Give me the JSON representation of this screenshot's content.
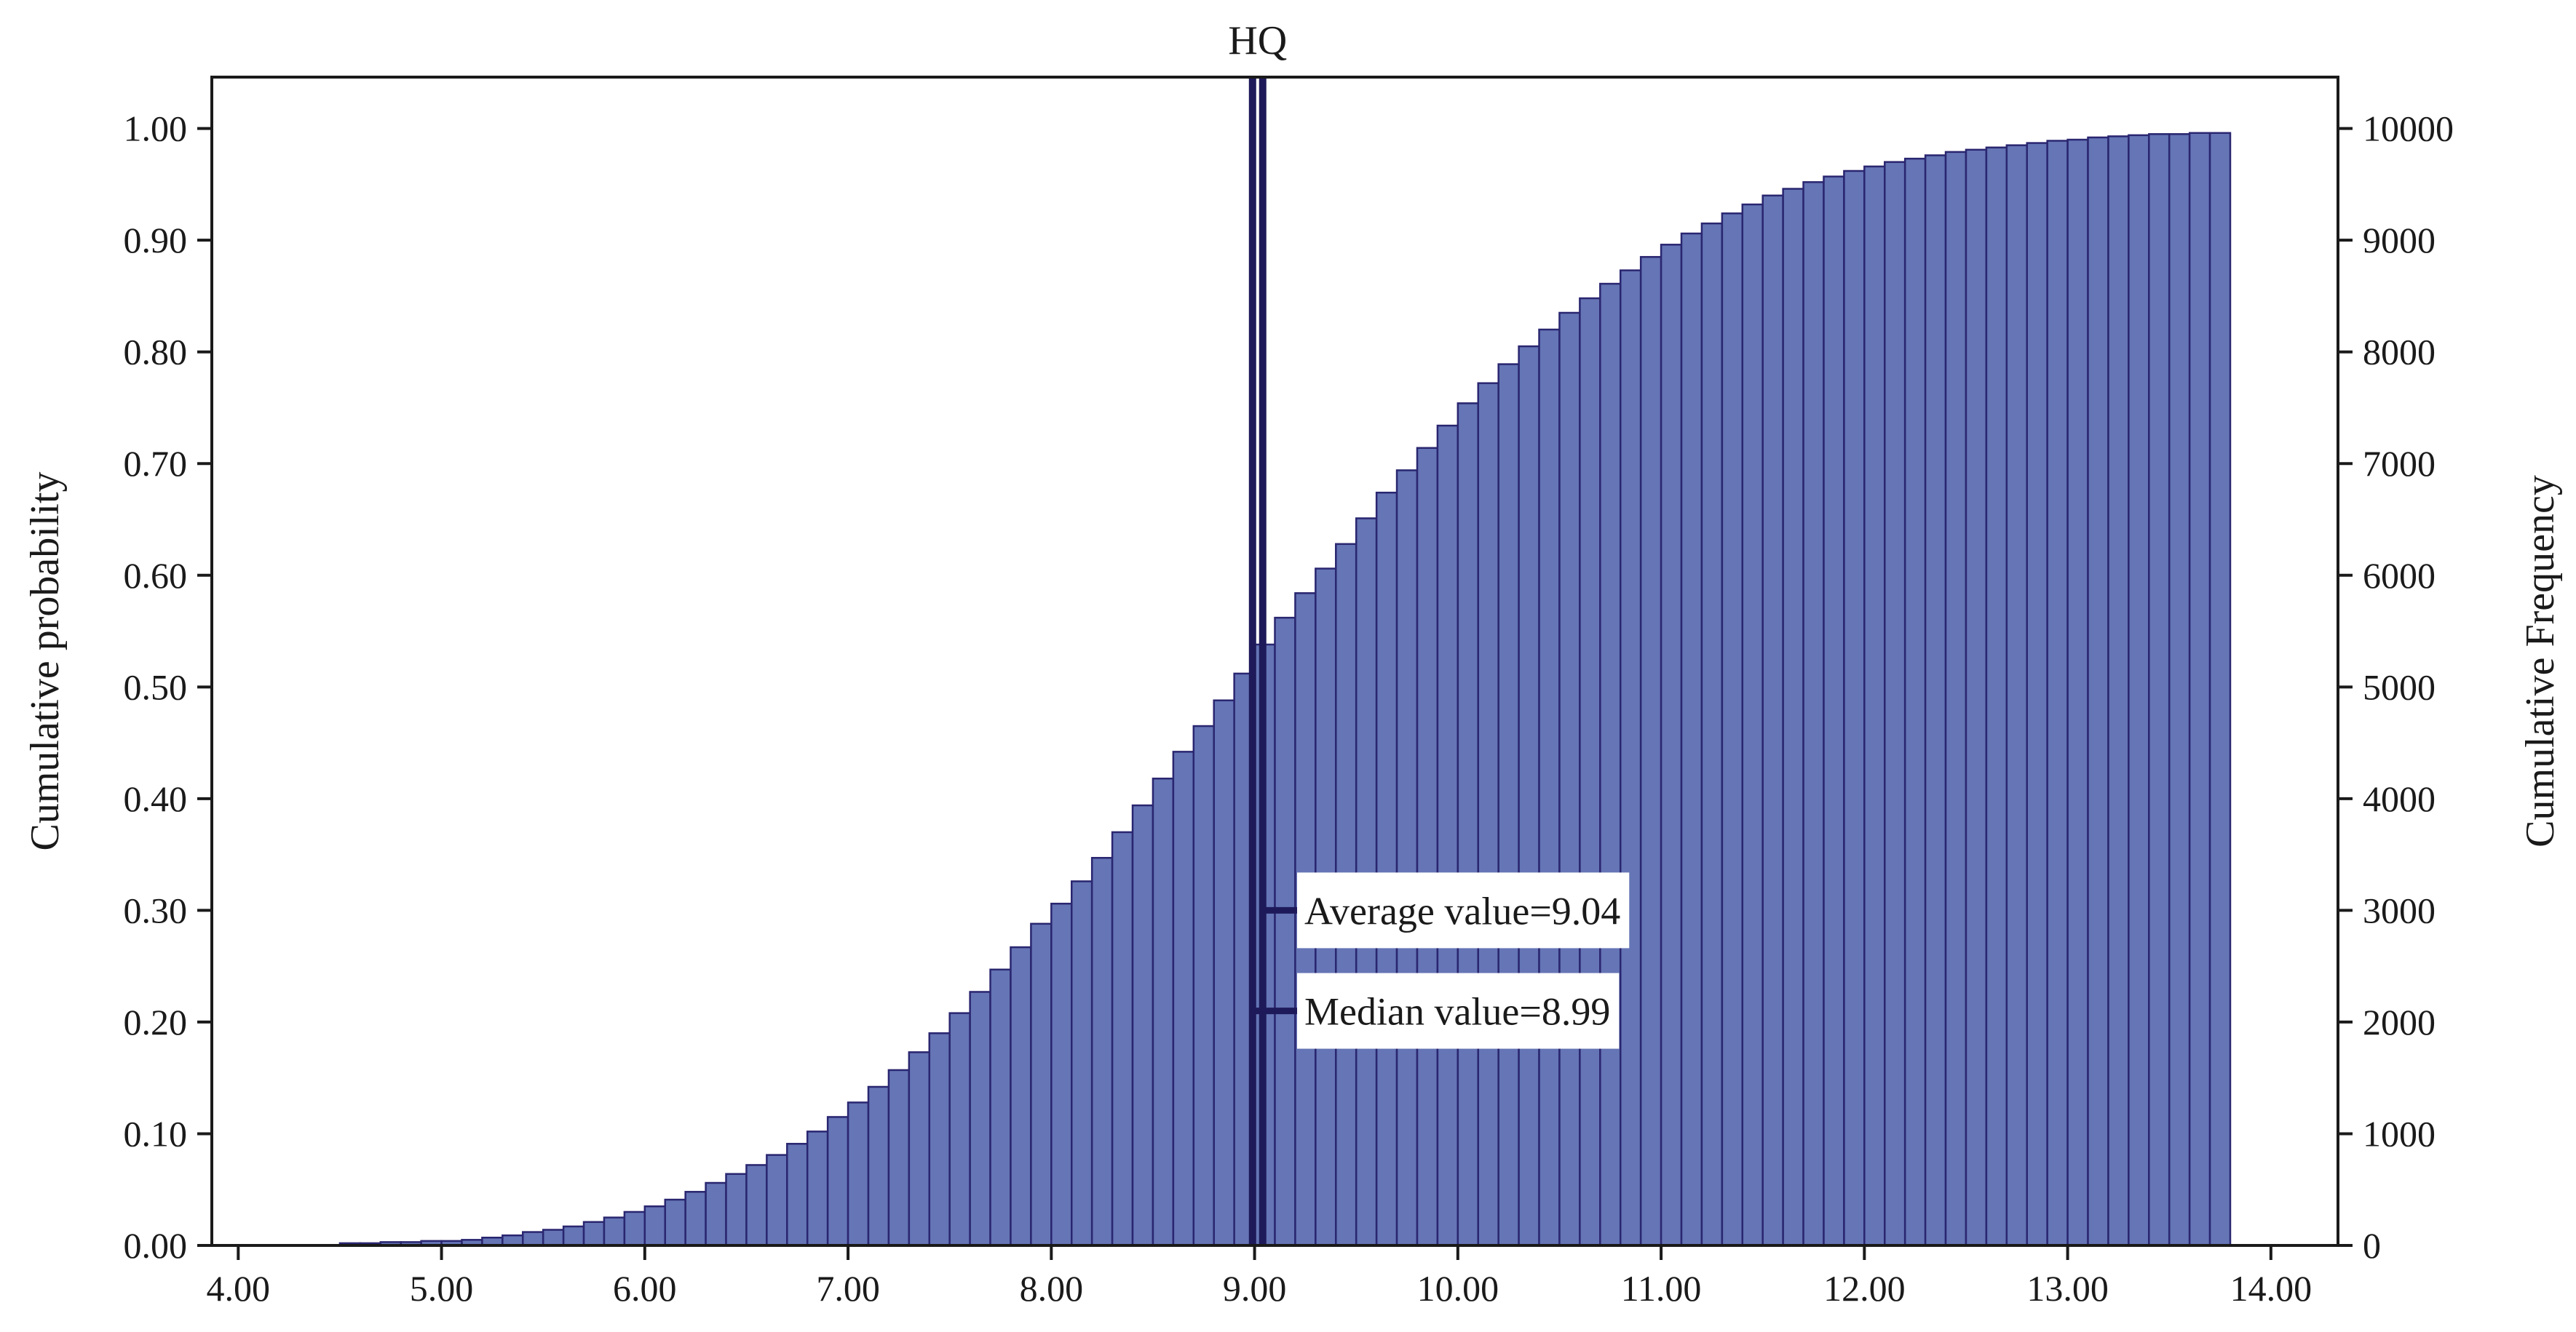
{
  "chart_data": {
    "type": "bar",
    "title": "HQ",
    "ylabel_left": "Cumulative probability",
    "ylabel_right": "Cumulative Frequency",
    "xlabel": "",
    "xlim": [
      3.87,
      14.33
    ],
    "ylim_left": [
      0,
      1.046
    ],
    "ylim_right": [
      0,
      10460
    ],
    "x_ticks": [
      "4.00",
      "5.00",
      "6.00",
      "7.00",
      "8.00",
      "9.00",
      "10.00",
      "11.00",
      "12.00",
      "13.00",
      "14.00"
    ],
    "y_ticks_left": [
      "0.00",
      "0.10",
      "0.20",
      "0.30",
      "0.40",
      "0.50",
      "0.60",
      "0.70",
      "0.80",
      "0.90",
      "1.00"
    ],
    "y_ticks_right": [
      "0",
      "1000",
      "2000",
      "3000",
      "4000",
      "5000",
      "6000",
      "7000",
      "8000",
      "9000",
      "10000"
    ],
    "grid": false,
    "bin_start": 4.5,
    "bin_width": 0.1,
    "values": [
      0.002,
      0.002,
      0.003,
      0.003,
      0.004,
      0.004,
      0.005,
      0.007,
      0.009,
      0.012,
      0.014,
      0.017,
      0.021,
      0.025,
      0.03,
      0.035,
      0.041,
      0.048,
      0.056,
      0.064,
      0.072,
      0.081,
      0.091,
      0.102,
      0.115,
      0.128,
      0.142,
      0.157,
      0.173,
      0.19,
      0.208,
      0.227,
      0.247,
      0.267,
      0.288,
      0.306,
      0.326,
      0.347,
      0.37,
      0.394,
      0.418,
      0.442,
      0.465,
      0.488,
      0.512,
      0.538,
      0.562,
      0.584,
      0.606,
      0.628,
      0.651,
      0.674,
      0.694,
      0.714,
      0.734,
      0.754,
      0.772,
      0.789,
      0.805,
      0.82,
      0.835,
      0.848,
      0.861,
      0.873,
      0.885,
      0.896,
      0.906,
      0.915,
      0.924,
      0.932,
      0.94,
      0.946,
      0.952,
      0.957,
      0.962,
      0.966,
      0.97,
      0.973,
      0.976,
      0.979,
      0.981,
      0.983,
      0.985,
      0.987,
      0.989,
      0.99,
      0.992,
      0.993,
      0.994,
      0.995,
      0.995,
      0.996,
      0.996
    ],
    "bar_color": "#6575b5",
    "bar_edge_color": "#2a2670",
    "line_color": "#1e1a5a",
    "reference_lines": [
      {
        "name": "average",
        "x": 9.04,
        "label": "Average value=9.04",
        "label_y": 0.3
      },
      {
        "name": "median",
        "x": 8.99,
        "label": "Median value=8.99",
        "label_y": 0.21
      }
    ]
  }
}
